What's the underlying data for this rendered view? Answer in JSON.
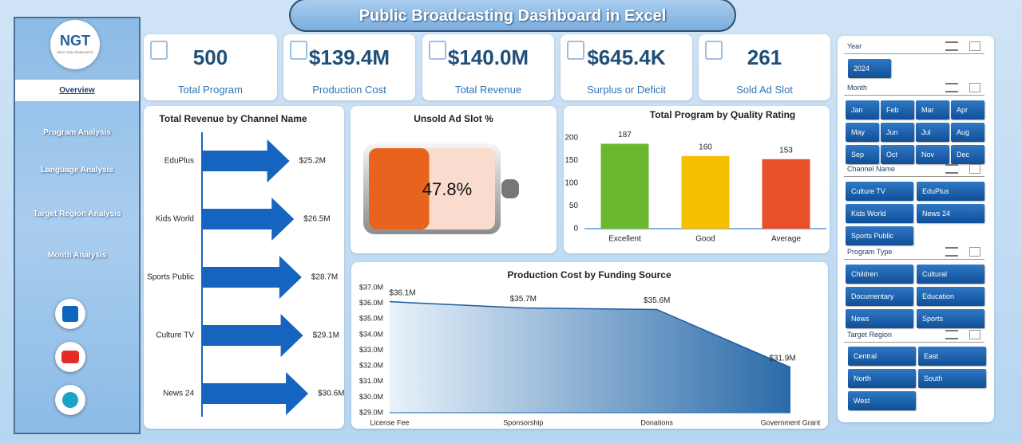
{
  "title": "Public Broadcasting Dashboard in Excel",
  "logo": {
    "mark": "NGT",
    "tagline": "NEXT GEN TEMPLATES"
  },
  "nav": [
    "Overview",
    "Program Analysis",
    "Language Analysis",
    "Target Region Analysis",
    "Month Analysis"
  ],
  "kpis": [
    {
      "value": "500",
      "label": "Total Program"
    },
    {
      "value": "$139.4M",
      "label": "Production Cost"
    },
    {
      "value": "$140.0M",
      "label": "Total Revenue"
    },
    {
      "value": "$645.4K",
      "label": "Surplus or Deficit"
    },
    {
      "value": "261",
      "label": "Sold Ad Slot"
    }
  ],
  "chart_data": [
    {
      "type": "arrowbar",
      "title": "Total Revenue by Channel Name",
      "categories": [
        "EduPlus",
        "Kids World",
        "Sports Public",
        "Culture TV",
        "News 24"
      ],
      "values": [
        25.2,
        26.5,
        28.7,
        29.1,
        30.6
      ],
      "value_labels": [
        "$25.2M",
        "$26.5M",
        "$28.7M",
        "$29.1M",
        "$30.6M"
      ],
      "color": "#1565c0"
    },
    {
      "type": "battery",
      "title": "Unsold Ad Slot %",
      "values": [
        47.8
      ],
      "value_labels": [
        "47.8%"
      ],
      "color": "#e8641e"
    },
    {
      "type": "bar",
      "title": "Total Program by Quality Rating",
      "categories": [
        "Excellent",
        "Good",
        "Average"
      ],
      "values": [
        187,
        160,
        153
      ],
      "colors": [
        "#6ab82e",
        "#f5c000",
        "#e8502a"
      ],
      "ylim": [
        0,
        200
      ],
      "yticks": [
        0,
        50,
        100,
        150,
        200
      ]
    },
    {
      "type": "area",
      "title": "Production Cost by Funding Source",
      "categories": [
        "License Fee",
        "Sponsorship",
        "Donations",
        "Government Grant"
      ],
      "values": [
        36.1,
        35.7,
        35.6,
        31.9
      ],
      "value_labels": [
        "$36.1M",
        "$35.7M",
        "$35.6M",
        "$31.9M"
      ],
      "color": "#1f5aa0",
      "ylim": [
        29,
        37
      ],
      "yticks": [
        {
          "value": 29,
          "label": "$29.0M"
        },
        {
          "value": 30,
          "label": "$30.0M"
        },
        {
          "value": 31,
          "label": "$31.0M"
        },
        {
          "value": 32,
          "label": "$32.0M"
        },
        {
          "value": 33,
          "label": "$33.0M"
        },
        {
          "value": 34,
          "label": "$34.0M"
        },
        {
          "value": 35,
          "label": "$35.0M"
        },
        {
          "value": 36,
          "label": "$36.0M"
        },
        {
          "value": 37,
          "label": "$37.0M"
        }
      ]
    }
  ],
  "slicers": [
    {
      "title": "Year",
      "items": [
        "2024"
      ]
    },
    {
      "title": "Month",
      "items": [
        "Jan",
        "Feb",
        "Mar",
        "Apr",
        "May",
        "Jun",
        "Jul",
        "Aug",
        "Sep",
        "Oct",
        "Nov",
        "Dec"
      ]
    },
    {
      "title": "Channel Name",
      "items": [
        "Culture TV",
        "EduPlus",
        "Kids World",
        "News 24",
        "Sports Public"
      ]
    },
    {
      "title": "Program Type",
      "items": [
        "Children",
        "Cultural",
        "Documentary",
        "Education",
        "News",
        "Sports"
      ]
    },
    {
      "title": "Target Region",
      "items": [
        "Central",
        "East",
        "North",
        "South",
        "West"
      ]
    }
  ]
}
